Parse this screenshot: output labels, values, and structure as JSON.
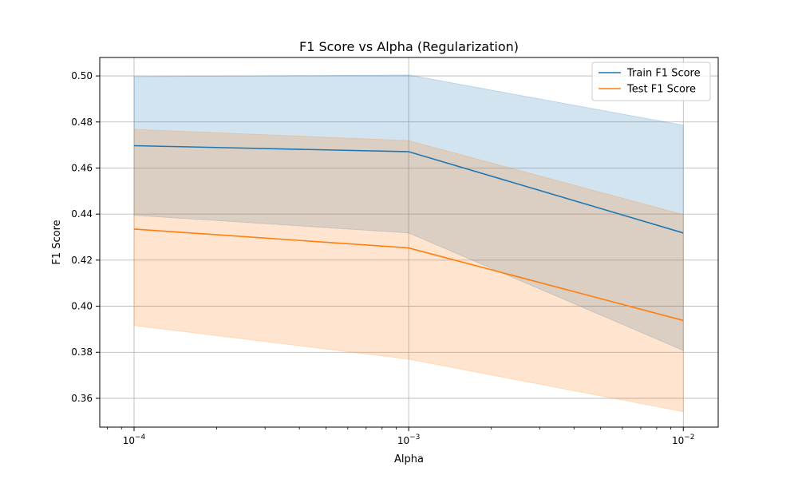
{
  "chart_data": {
    "type": "line",
    "title": "F1 Score vs Alpha (Regularization)",
    "xlabel": "Alpha",
    "ylabel": "F1 Score",
    "x_scale": "log",
    "x": [
      0.0001,
      0.001,
      0.01
    ],
    "xlim": [
      7.5e-05,
      0.0134
    ],
    "ylim": [
      0.3475,
      0.508
    ],
    "x_ticks": [
      {
        "value": 0.0001,
        "base": "10",
        "exp": "−4"
      },
      {
        "value": 0.001,
        "base": "10",
        "exp": "−3"
      },
      {
        "value": 0.01,
        "base": "10",
        "exp": "−2"
      }
    ],
    "y_ticks": [
      {
        "value": 0.36,
        "label": "0.36"
      },
      {
        "value": 0.38,
        "label": "0.38"
      },
      {
        "value": 0.4,
        "label": "0.40"
      },
      {
        "value": 0.42,
        "label": "0.42"
      },
      {
        "value": 0.44,
        "label": "0.44"
      },
      {
        "value": 0.46,
        "label": "0.46"
      },
      {
        "value": 0.48,
        "label": "0.48"
      },
      {
        "value": 0.5,
        "label": "0.50"
      }
    ],
    "grid": true,
    "legend_position": "upper right",
    "series": [
      {
        "name": "Train F1 Score",
        "color": "#1f77b4",
        "values": [
          0.4697,
          0.4671,
          0.4318
        ],
        "band_lower": [
          0.4395,
          0.4318,
          0.3808
        ],
        "band_upper": [
          0.4997,
          0.5004,
          0.4786
        ]
      },
      {
        "name": "Test F1 Score",
        "color": "#ff7f0e",
        "values": [
          0.4335,
          0.4253,
          0.3938
        ],
        "band_lower": [
          0.3916,
          0.377,
          0.3542
        ],
        "band_upper": [
          0.4768,
          0.4719,
          0.4398
        ]
      }
    ]
  }
}
